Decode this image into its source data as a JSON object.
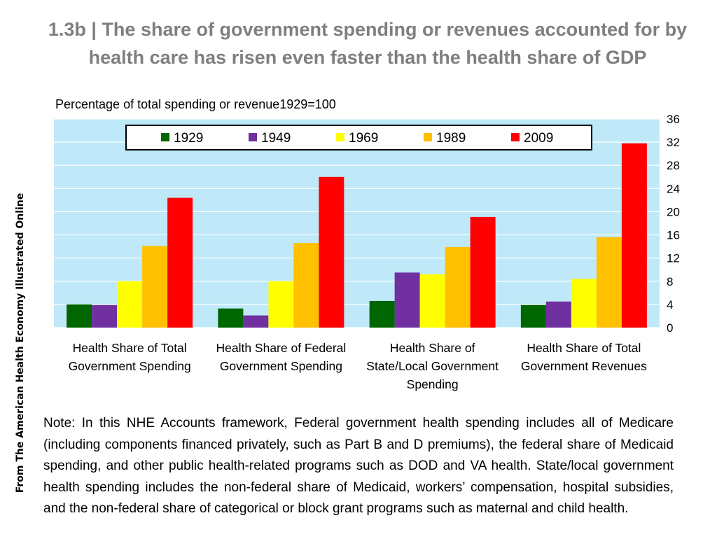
{
  "title": "1.3b | The share of government spending or revenues accounted for by health care has risen even faster than the health share of GDP",
  "side_label": "From The American Health Economy Illustrated Online",
  "note": "Note: In this NHE Accounts framework, Federal government health spending includes all of Medicare (including components financed privately, such as Part B and D premiums), the federal share of Medicaid spending, and  other public health-related programs such as DOD and VA health. State/local government health spending includes the non-federal share  of Medicaid, workers’ compensation, hospital subsidies, and the non-federal share of categorical or block grant programs such as maternal and child health.",
  "chart_data": {
    "type": "bar",
    "title": "",
    "ylabel": "Percentage of total spending or revenue1929=100",
    "xlabel": "",
    "ylim": [
      0,
      36
    ],
    "yticks": [
      0,
      4,
      8,
      12,
      16,
      20,
      24,
      28,
      32,
      36
    ],
    "y_axis_side": "right",
    "grid": true,
    "legend_position": "top",
    "background_color": "#bfe9f9",
    "categories": [
      "Health Share of Total Government Spending",
      "Health Share of Federal Government Spending",
      "Health Share of State/Local Government Spending",
      "Health Share of Total Government Revenues"
    ],
    "series": [
      {
        "name": "1929",
        "color": "#006600",
        "values": [
          4.0,
          3.3,
          4.6,
          3.9
        ]
      },
      {
        "name": "1949",
        "color": "#7030a0",
        "values": [
          3.9,
          2.1,
          9.5,
          4.5
        ]
      },
      {
        "name": "1969",
        "color": "#ffff00",
        "values": [
          8.0,
          8.0,
          9.2,
          8.4
        ]
      },
      {
        "name": "1989",
        "color": "#ffc000",
        "values": [
          14.1,
          14.6,
          13.9,
          15.6
        ]
      },
      {
        "name": "2009",
        "color": "#ff0000",
        "values": [
          22.4,
          26.0,
          19.1,
          31.8
        ]
      }
    ]
  }
}
